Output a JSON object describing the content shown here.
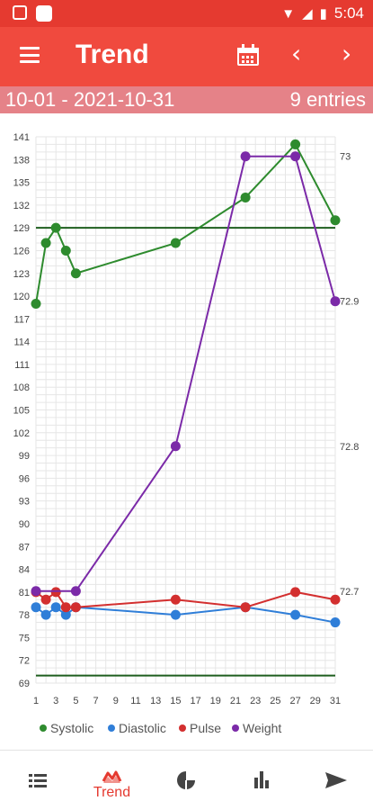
{
  "status_bar": {
    "time": "5:04"
  },
  "app_bar": {
    "title": "Trend",
    "prev_glyph": "‹",
    "next_glyph": "›",
    "icons": [
      "menu-icon",
      "calendar-icon",
      "chevron-left-icon",
      "chevron-right-icon"
    ]
  },
  "range_bar": {
    "range": "10-01 - 2021-10-31",
    "entries": "9 entries"
  },
  "chart_data": {
    "type": "line",
    "x_ticks": [
      "1",
      "3",
      "5",
      "7",
      "9",
      "11",
      "13",
      "15",
      "17",
      "19",
      "21",
      "23",
      "25",
      "27",
      "29",
      "31"
    ],
    "x_range": [
      1,
      31
    ],
    "left_ticks": [
      "141",
      "138",
      "135",
      "132",
      "129",
      "126",
      "123",
      "120",
      "117",
      "114",
      "111",
      "108",
      "105",
      "102",
      "99",
      "96",
      "93",
      "90",
      "87",
      "84",
      "81",
      "78",
      "75",
      "72",
      "69"
    ],
    "left_range": [
      69,
      141
    ],
    "right_ticks": [
      "73",
      "72.9",
      "72.8",
      "72.7"
    ],
    "right_range": [
      72.6365,
      73.0135
    ],
    "grid": true,
    "thresholds": [
      129,
      70
    ],
    "legend_position": "bottom",
    "series": [
      {
        "name": "Systolic",
        "color": "#2e8b2e",
        "axis": "left",
        "x": [
          1,
          2,
          3,
          4,
          5,
          15,
          22,
          27,
          31
        ],
        "y": [
          119,
          127,
          129,
          126,
          123,
          127,
          133,
          140,
          130
        ]
      },
      {
        "name": "Diastolic",
        "color": "#2f7ed8",
        "axis": "left",
        "x": [
          1,
          2,
          3,
          4,
          5,
          15,
          22,
          27,
          31
        ],
        "y": [
          79,
          78,
          79,
          78,
          79,
          78,
          79,
          78,
          77
        ]
      },
      {
        "name": "Pulse",
        "color": "#d32f2f",
        "axis": "left",
        "x": [
          1,
          2,
          3,
          4,
          5,
          15,
          22,
          27,
          31
        ],
        "y": [
          81,
          80,
          81,
          79,
          79,
          80,
          79,
          81,
          80
        ]
      },
      {
        "name": "Weight",
        "color": "#7b2aa8",
        "axis": "right",
        "x": [
          1,
          5,
          15,
          22,
          27,
          31
        ],
        "y": [
          72.7,
          72.7,
          72.8,
          73.0,
          73.0,
          72.9
        ]
      }
    ]
  },
  "bottom_nav": {
    "items": [
      {
        "name": "list-icon"
      },
      {
        "name": "trend-icon",
        "label": "Trend",
        "active": true
      },
      {
        "name": "pie-chart-icon"
      },
      {
        "name": "bar-chart-icon"
      },
      {
        "name": "send-icon"
      }
    ],
    "accent": "#e53a30",
    "inactive": "#444444"
  }
}
